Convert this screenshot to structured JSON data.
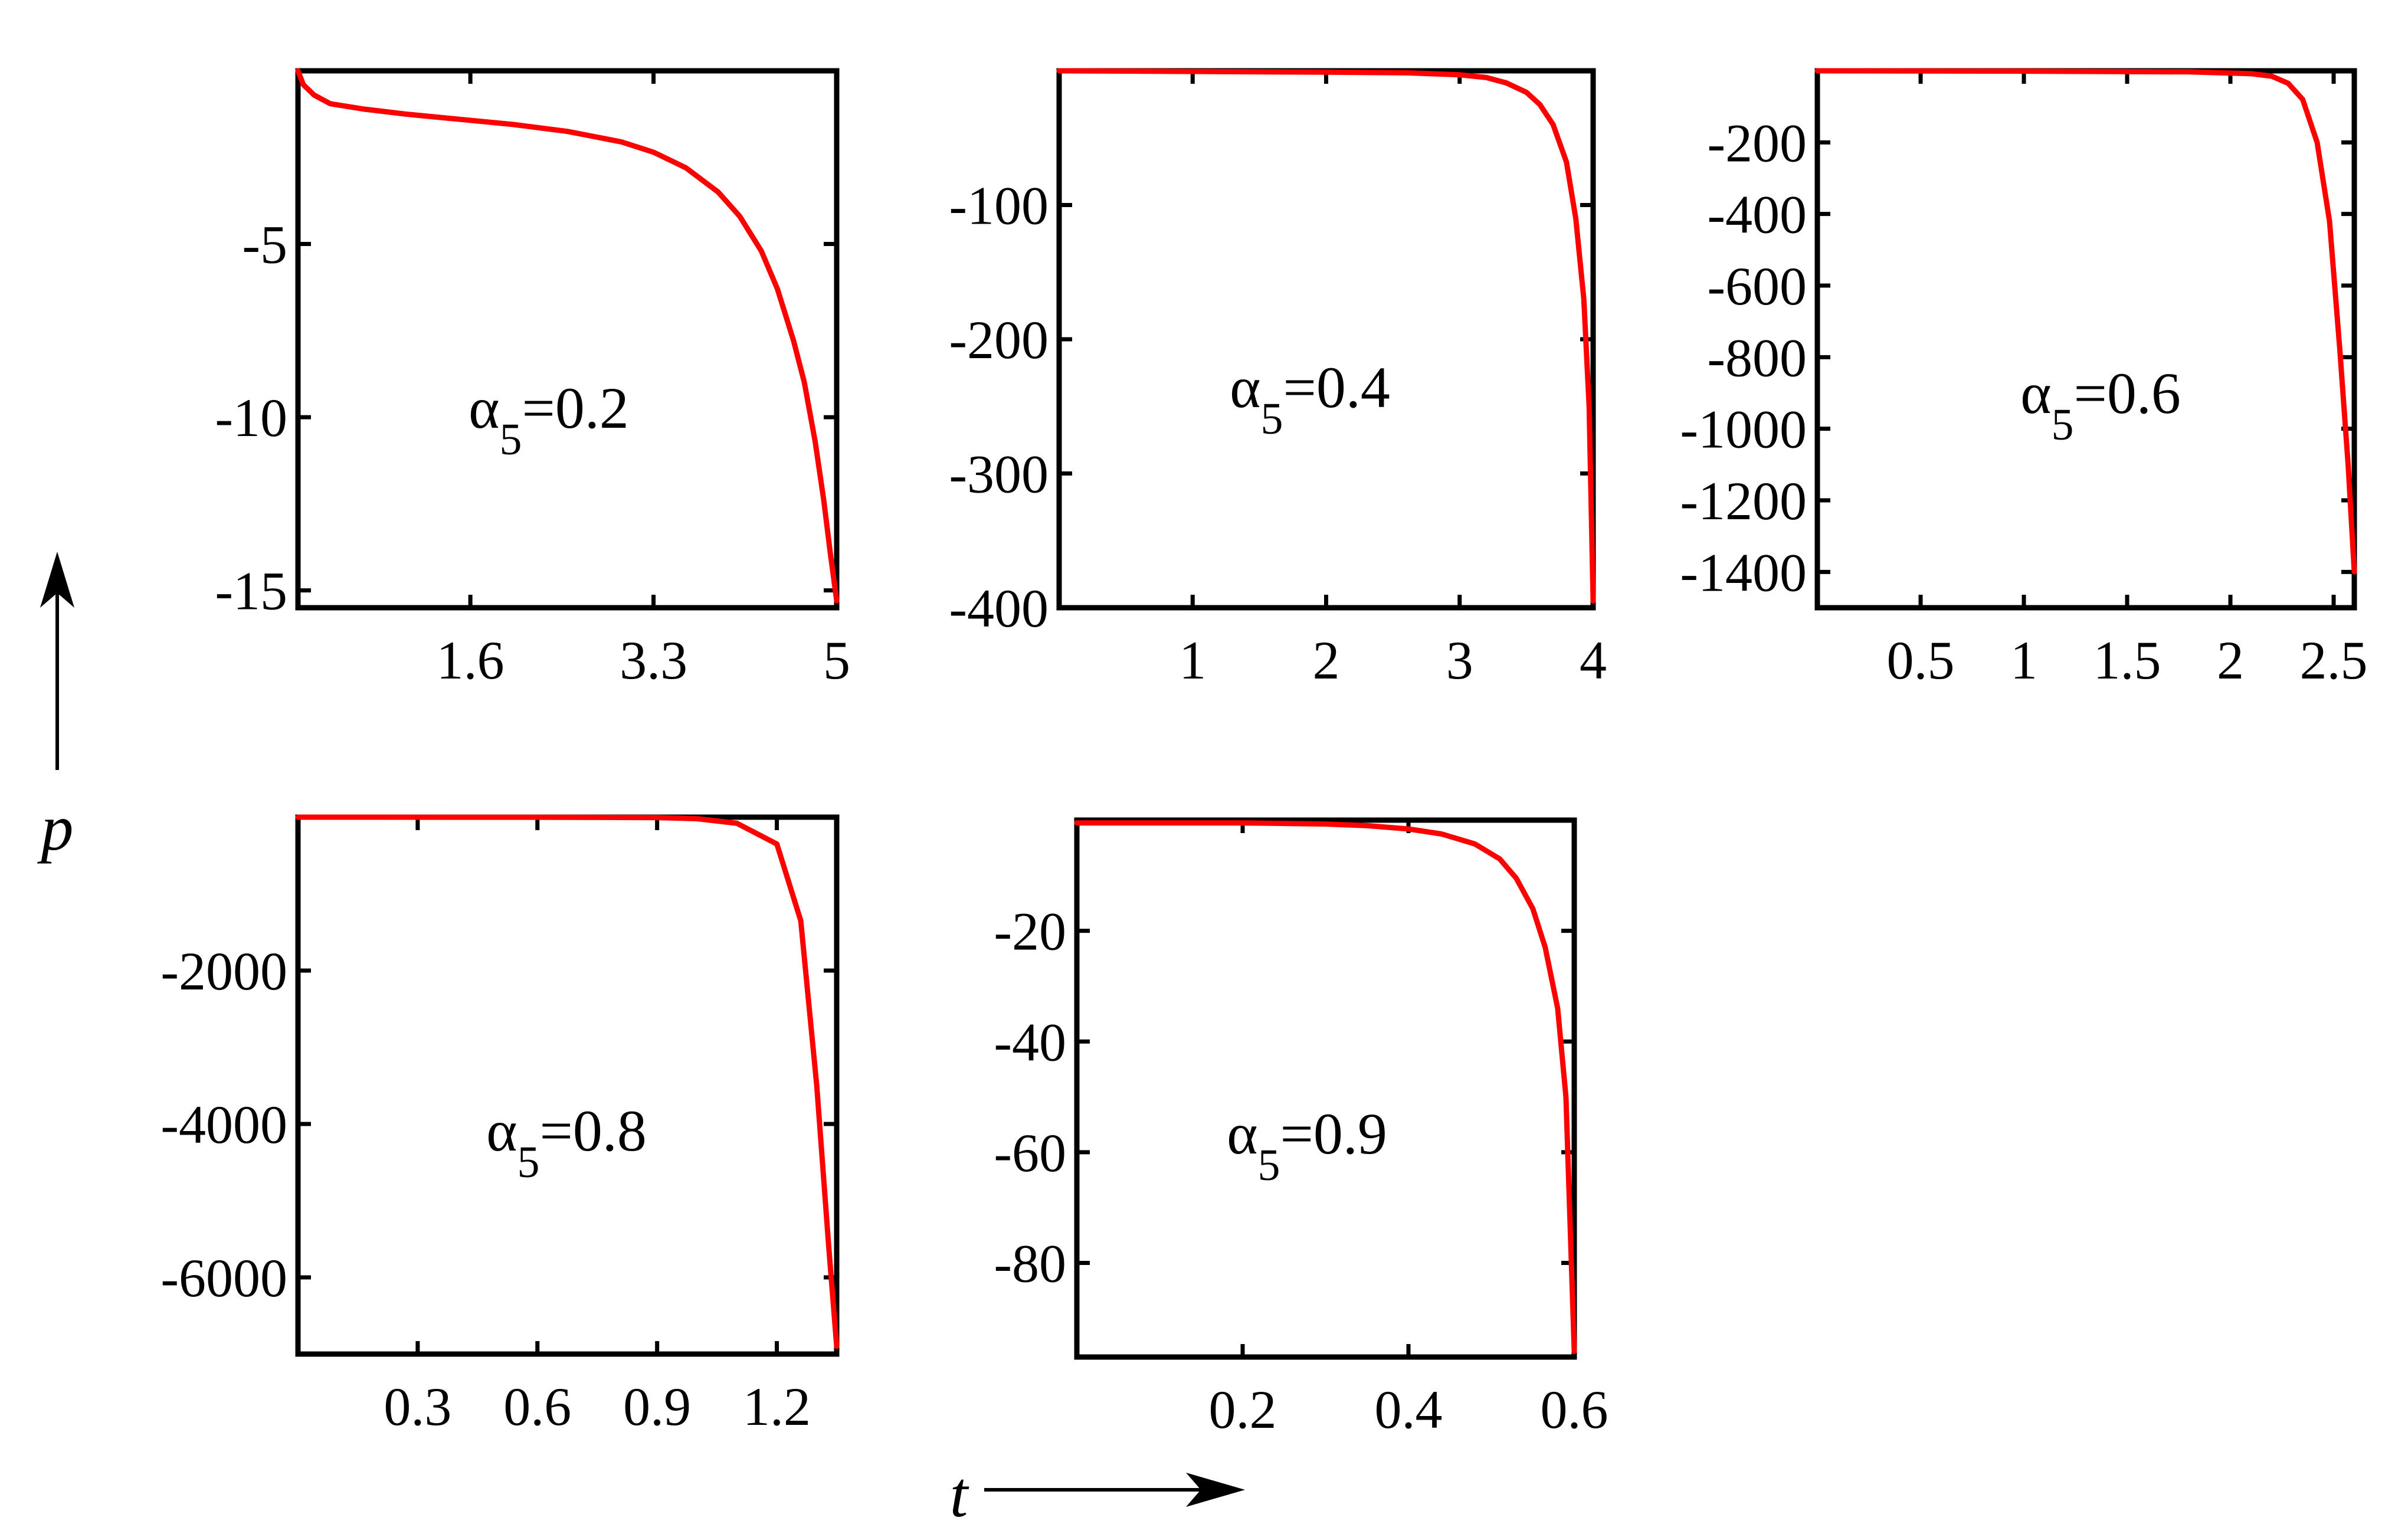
{
  "figure": {
    "y_axis_label": "p",
    "x_axis_label": "t",
    "line_color": "#ff0000"
  },
  "chart_data": [
    {
      "type": "line",
      "label_symbol": "α",
      "label_subscript": "5",
      "label_value": "=0.2",
      "xlim": [
        0,
        5
      ],
      "ylim": [
        -15.5,
        0
      ],
      "xticks": [
        1.6,
        3.3,
        5
      ],
      "xticklabels": [
        "1.6",
        "3.3",
        "5"
      ],
      "yticks": [
        -5,
        -10,
        -15
      ],
      "yticklabels": [
        "-5",
        "-10",
        "-15"
      ],
      "series": [
        {
          "x": [
            0,
            0.05,
            0.15,
            0.3,
            0.6,
            1.0,
            1.5,
            2.0,
            2.5,
            3.0,
            3.3,
            3.6,
            3.9,
            4.1,
            4.3,
            4.45,
            4.6,
            4.7,
            4.8,
            4.88,
            4.94,
            5.0
          ],
          "y": [
            0,
            -0.4,
            -0.7,
            -0.95,
            -1.1,
            -1.25,
            -1.4,
            -1.55,
            -1.75,
            -2.05,
            -2.35,
            -2.8,
            -3.5,
            -4.2,
            -5.2,
            -6.3,
            -7.8,
            -9.0,
            -10.7,
            -12.4,
            -13.9,
            -15.3
          ]
        }
      ]
    },
    {
      "type": "line",
      "label_symbol": "α",
      "label_subscript": "5",
      "label_value": "=0.4",
      "xlim": [
        0,
        4
      ],
      "ylim": [
        -400,
        0
      ],
      "xticks": [
        1,
        2,
        3,
        4
      ],
      "xticklabels": [
        "1",
        "2",
        "3",
        "4"
      ],
      "yticks": [
        -100,
        -200,
        -300,
        -400
      ],
      "yticklabels": [
        "-100",
        "-200",
        "-300",
        "-400"
      ],
      "series": [
        {
          "x": [
            0,
            1.0,
            2.0,
            2.6,
            3.0,
            3.2,
            3.35,
            3.5,
            3.6,
            3.7,
            3.8,
            3.87,
            3.93,
            3.97,
            4.0
          ],
          "y": [
            0,
            -0.5,
            -1,
            -1.5,
            -3,
            -5,
            -9,
            -16,
            -25,
            -40,
            -68,
            -110,
            -170,
            -250,
            -395
          ]
        }
      ]
    },
    {
      "type": "line",
      "label_symbol": "α",
      "label_subscript": "5",
      "label_value": "=0.6",
      "xlim": [
        0,
        2.6
      ],
      "ylim": [
        -1500,
        0
      ],
      "xticks": [
        0.5,
        1,
        1.5,
        2,
        2.5
      ],
      "xticklabels": [
        "0.5",
        "1",
        "1.5",
        "2",
        "2.5"
      ],
      "yticks": [
        -200,
        -400,
        -600,
        -800,
        -1000,
        -1200,
        -1400
      ],
      "yticklabels": [
        "-200",
        "-400",
        "-600",
        "-800",
        "-1000",
        "-1200",
        "-1400"
      ],
      "series": [
        {
          "x": [
            0,
            1.0,
            1.8,
            2.1,
            2.2,
            2.28,
            2.35,
            2.42,
            2.48,
            2.53,
            2.57,
            2.6
          ],
          "y": [
            0,
            -1,
            -3,
            -8,
            -15,
            -35,
            -80,
            -200,
            -420,
            -780,
            -1100,
            -1400
          ]
        }
      ]
    },
    {
      "type": "line",
      "label_symbol": "α",
      "label_subscript": "5",
      "label_value": "=0.8",
      "xlim": [
        0,
        1.35
      ],
      "ylim": [
        -7000,
        0
      ],
      "xticks": [
        0.3,
        0.6,
        0.9,
        1.2
      ],
      "xticklabels": [
        "0.3",
        "0.6",
        "0.9",
        "1.2"
      ],
      "yticks": [
        -2000,
        -4000,
        -6000
      ],
      "yticklabels": [
        "-2000",
        "-4000",
        "-6000"
      ],
      "series": [
        {
          "x": [
            0,
            0.6,
            0.9,
            1.0,
            1.1,
            1.2,
            1.26,
            1.3,
            1.33,
            1.35
          ],
          "y": [
            0,
            -1,
            -5,
            -20,
            -80,
            -350,
            -1350,
            -3500,
            -5600,
            -6900
          ]
        }
      ]
    },
    {
      "type": "line",
      "label_symbol": "α",
      "label_subscript": "5",
      "label_value": "=0.9",
      "xlim": [
        0,
        0.6
      ],
      "ylim": [
        -97,
        0
      ],
      "xticks": [
        0.2,
        0.4,
        0.6
      ],
      "xticklabels": [
        "0.2",
        "0.4",
        "0.6"
      ],
      "yticks": [
        -20,
        -40,
        -60,
        -80
      ],
      "yticklabels": [
        "-20",
        "-40",
        "-60",
        "-80"
      ],
      "series": [
        {
          "x": [
            0,
            0.2,
            0.3,
            0.35,
            0.4,
            0.44,
            0.48,
            0.51,
            0.53,
            0.55,
            0.565,
            0.58,
            0.59,
            0.6
          ],
          "y": [
            -0.5,
            -0.5,
            -0.7,
            -1,
            -1.6,
            -2.5,
            -4.3,
            -7,
            -10.5,
            -16,
            -23,
            -34,
            -50,
            -96
          ]
        }
      ]
    }
  ]
}
